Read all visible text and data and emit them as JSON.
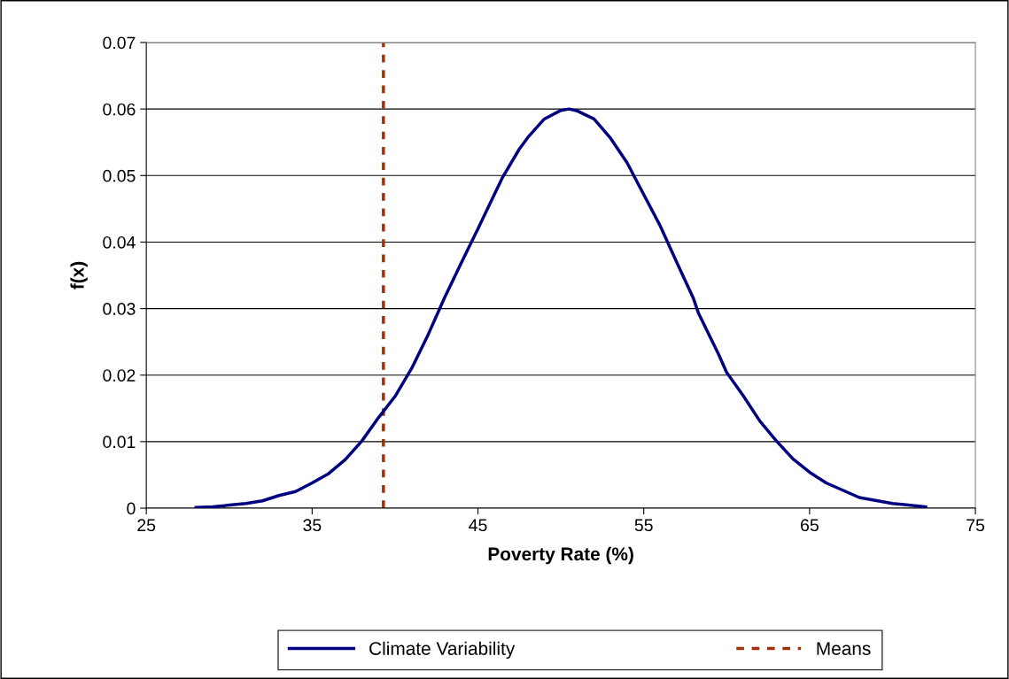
{
  "chart_data": {
    "type": "line",
    "xlabel": "Poverty Rate (%)",
    "ylabel": "f(x)",
    "series": [
      {
        "name": "Climate Variability",
        "color": "#000080",
        "x": [
          28,
          29,
          31,
          32,
          33,
          34,
          35,
          36,
          37,
          38,
          39,
          40,
          41,
          42,
          43,
          44,
          45,
          46,
          46.5,
          47.5,
          48,
          49,
          50,
          50.5,
          51,
          52,
          53,
          54,
          54.5,
          56,
          57,
          58,
          58.3,
          59.5,
          60,
          61,
          62,
          63,
          64,
          65,
          66,
          68,
          70,
          72
        ],
        "values": [
          0.0001,
          0.0002,
          0.0007,
          0.0011,
          0.0019,
          0.0025,
          0.0038,
          0.0052,
          0.0073,
          0.0101,
          0.0136,
          0.0168,
          0.021,
          0.0261,
          0.0317,
          0.0369,
          0.042,
          0.0472,
          0.0498,
          0.054,
          0.0557,
          0.0585,
          0.0598,
          0.06,
          0.0597,
          0.0585,
          0.0556,
          0.0519,
          0.0495,
          0.0424,
          0.0369,
          0.0315,
          0.0293,
          0.0232,
          0.0204,
          0.0169,
          0.0131,
          0.0101,
          0.0074,
          0.0054,
          0.0038,
          0.0016,
          0.0007,
          0.0002
        ]
      }
    ],
    "ref_lines": [
      {
        "axis": "x",
        "value": 39.3,
        "label": "Means",
        "color": "#a0320a",
        "line_style": "dashed"
      }
    ],
    "xlim": [
      25,
      75
    ],
    "xticks": [
      25,
      35,
      45,
      55,
      65,
      75
    ],
    "ylim": [
      0,
      0.07
    ],
    "yticks": [
      0,
      0.01,
      0.02,
      0.03,
      0.04,
      0.05,
      0.06,
      0.07
    ],
    "grid": "y",
    "legend": "bottom",
    "marker": "none",
    "line_style": "solid"
  }
}
